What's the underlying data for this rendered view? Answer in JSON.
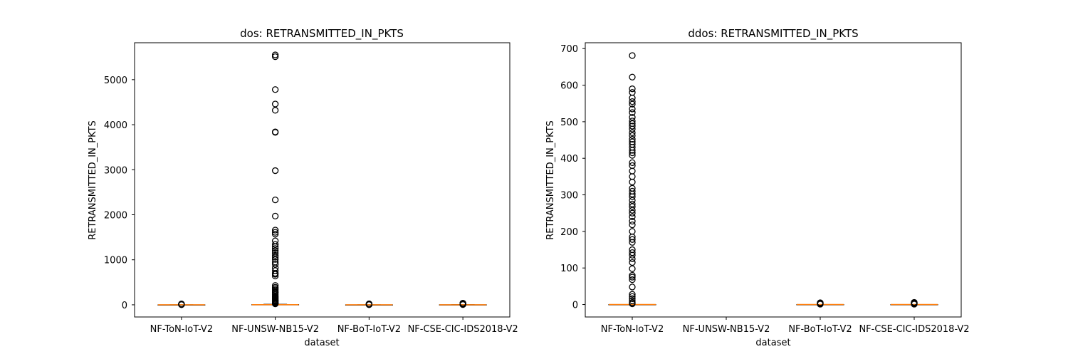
{
  "chart_data": [
    {
      "type": "box",
      "title": "dos: RETRANSMITTED_IN_PKTS",
      "xlabel": "dataset",
      "ylabel": "RETRANSMITTED_IN_PKTS",
      "categories": [
        "NF-ToN-IoT-V2",
        "NF-UNSW-NB15-V2",
        "NF-BoT-IoT-V2",
        "NF-CSE-CIC-IDS2018-V2"
      ],
      "ylim": [
        -270,
        5820
      ],
      "yticks": [
        0,
        1000,
        2000,
        3000,
        4000,
        5000
      ],
      "boxes": [
        {
          "category": "NF-ToN-IoT-V2",
          "present": true,
          "q1": 0,
          "median": 0,
          "q3": 0,
          "whisker_low": 0,
          "whisker_high": 0,
          "outliers": [
            3,
            6,
            10,
            14,
            20
          ]
        },
        {
          "category": "NF-UNSW-NB15-V2",
          "present": true,
          "q1": 0,
          "median": 2,
          "q3": 5,
          "whisker_low": 0,
          "whisker_high": 12,
          "outliers": [
            5550,
            5510,
            4780,
            4460,
            4320,
            3840,
            3830,
            2980,
            2330,
            1970,
            1660,
            1610,
            1570,
            1420,
            1340,
            1290,
            1250,
            1200,
            1150,
            1100,
            1060,
            1010,
            950,
            900,
            820,
            760,
            700,
            680,
            640,
            430,
            390,
            360,
            330,
            300,
            280,
            260,
            230,
            200,
            180,
            160,
            140,
            120,
            100,
            85,
            70,
            55,
            40,
            30,
            22
          ]
        },
        {
          "category": "NF-BoT-IoT-V2",
          "present": true,
          "q1": 0,
          "median": 0,
          "q3": 0,
          "whisker_low": 0,
          "whisker_high": 0,
          "outliers": [
            3,
            6,
            9,
            12,
            15,
            18,
            22
          ]
        },
        {
          "category": "NF-CSE-CIC-IDS2018-V2",
          "present": true,
          "q1": 0,
          "median": 0,
          "q3": 2,
          "whisker_low": 0,
          "whisker_high": 4,
          "outliers": [
            6,
            9,
            12,
            15,
            19,
            23,
            27,
            32,
            37
          ]
        }
      ]
    },
    {
      "type": "box",
      "title": "ddos: RETRANSMITTED_IN_PKTS",
      "xlabel": "dataset",
      "ylabel": "RETRANSMITTED_IN_PKTS",
      "categories": [
        "NF-ToN-IoT-V2",
        "NF-UNSW-NB15-V2",
        "NF-BoT-IoT-V2",
        "NF-CSE-CIC-IDS2018-V2"
      ],
      "ylim": [
        -34,
        716
      ],
      "yticks": [
        0,
        100,
        200,
        300,
        400,
        500,
        600,
        700
      ],
      "boxes": [
        {
          "category": "NF-ToN-IoT-V2",
          "present": true,
          "q1": 0,
          "median": 0,
          "q3": 0,
          "whisker_low": 0,
          "whisker_high": 0,
          "outliers": [
            681,
            622,
            590,
            580,
            565,
            555,
            548,
            535,
            525,
            512,
            502,
            495,
            488,
            480,
            470,
            462,
            452,
            445,
            438,
            430,
            422,
            415,
            408,
            388,
            380,
            365,
            350,
            335,
            318,
            310,
            302,
            295,
            285,
            275,
            268,
            258,
            250,
            240,
            228,
            218,
            200,
            185,
            178,
            170,
            150,
            142,
            135,
            125,
            115,
            98,
            80,
            75,
            68,
            48,
            28,
            22,
            16,
            10,
            5,
            2
          ]
        },
        {
          "category": "NF-UNSW-NB15-V2",
          "present": false
        },
        {
          "category": "NF-BoT-IoT-V2",
          "present": true,
          "q1": 0,
          "median": 0,
          "q3": 0,
          "whisker_low": 0,
          "whisker_high": 0,
          "outliers": [
            1,
            2,
            3,
            4,
            5
          ]
        },
        {
          "category": "NF-CSE-CIC-IDS2018-V2",
          "present": true,
          "q1": 0,
          "median": 0,
          "q3": 0,
          "whisker_low": 0,
          "whisker_high": 0,
          "outliers": [
            1,
            2,
            3,
            4,
            5,
            6
          ]
        }
      ]
    }
  ]
}
